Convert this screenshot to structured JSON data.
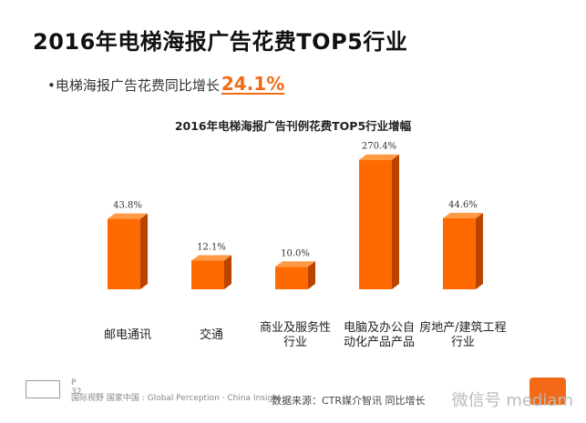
{
  "header": {
    "title": "2016年电梯海报广告花费TOP5行业",
    "subtitle_prefix": "•电梯海报广告花费同比增长",
    "subtitle_value": "24.1%"
  },
  "footer": {
    "page": "P 32",
    "tagline": "国际视野 国家中国 : Global Perception · China Insight",
    "source": "数据来源：CTR媒介智讯  同比增长",
    "watermark": "微信号 mediam"
  },
  "colors": {
    "bar_front": "#ff6a00",
    "bar_top": "#ff9a45",
    "bar_side": "#b84400",
    "accent": "#f26a18"
  },
  "chart_data": {
    "type": "bar",
    "title": "2016年电梯海报广告刊例花费TOP5行业增幅",
    "categories": [
      [
        "邮电通讯"
      ],
      [
        "交通"
      ],
      [
        "商业及服务性",
        "行业"
      ],
      [
        "电脑及办公自",
        "动化产品产品"
      ],
      [
        "房地产/建筑工程",
        "行业"
      ]
    ],
    "values": [
      43.8,
      12.1,
      10.0,
      270.4,
      44.6
    ],
    "value_labels": [
      "43.8%",
      "12.1%",
      "10.0%",
      "270.4%",
      "44.6%"
    ],
    "scale": "log",
    "ylim": [
      5,
      300
    ],
    "grid": false,
    "legend": "none"
  }
}
